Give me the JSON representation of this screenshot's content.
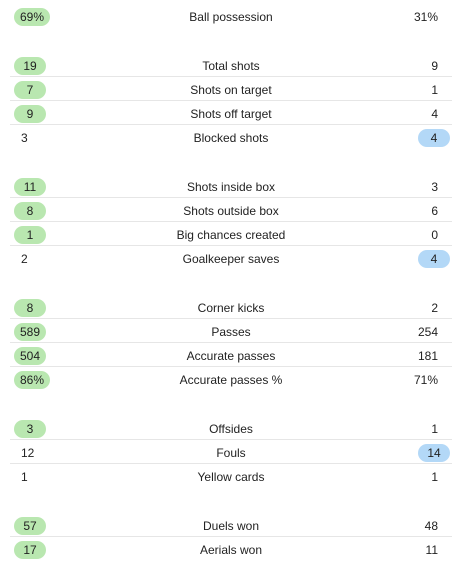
{
  "colors": {
    "home_highlight": "#b9e7b0",
    "away_highlight": "#b3d8f7"
  },
  "groups": [
    {
      "rows": [
        {
          "label": "Ball possession",
          "home": "69%",
          "away": "31%",
          "winner": "home"
        }
      ]
    },
    {
      "rows": [
        {
          "label": "Total shots",
          "home": "19",
          "away": "9",
          "winner": "home"
        },
        {
          "label": "Shots on target",
          "home": "7",
          "away": "1",
          "winner": "home"
        },
        {
          "label": "Shots off target",
          "home": "9",
          "away": "4",
          "winner": "home"
        },
        {
          "label": "Blocked shots",
          "home": "3",
          "away": "4",
          "winner": "away"
        }
      ]
    },
    {
      "rows": [
        {
          "label": "Shots inside box",
          "home": "11",
          "away": "3",
          "winner": "home"
        },
        {
          "label": "Shots outside box",
          "home": "8",
          "away": "6",
          "winner": "home"
        },
        {
          "label": "Big chances created",
          "home": "1",
          "away": "0",
          "winner": "home"
        },
        {
          "label": "Goalkeeper saves",
          "home": "2",
          "away": "4",
          "winner": "away"
        }
      ]
    },
    {
      "rows": [
        {
          "label": "Corner kicks",
          "home": "8",
          "away": "2",
          "winner": "home"
        },
        {
          "label": "Passes",
          "home": "589",
          "away": "254",
          "winner": "home"
        },
        {
          "label": "Accurate passes",
          "home": "504",
          "away": "181",
          "winner": "home"
        },
        {
          "label": "Accurate passes %",
          "home": "86%",
          "away": "71%",
          "winner": "home"
        }
      ]
    },
    {
      "rows": [
        {
          "label": "Offsides",
          "home": "3",
          "away": "1",
          "winner": "home"
        },
        {
          "label": "Fouls",
          "home": "12",
          "away": "14",
          "winner": "away"
        },
        {
          "label": "Yellow cards",
          "home": "1",
          "away": "1",
          "winner": "none"
        }
      ]
    },
    {
      "rows": [
        {
          "label": "Duels won",
          "home": "57",
          "away": "48",
          "winner": "home"
        },
        {
          "label": "Aerials won",
          "home": "17",
          "away": "11",
          "winner": "home"
        }
      ]
    }
  ]
}
